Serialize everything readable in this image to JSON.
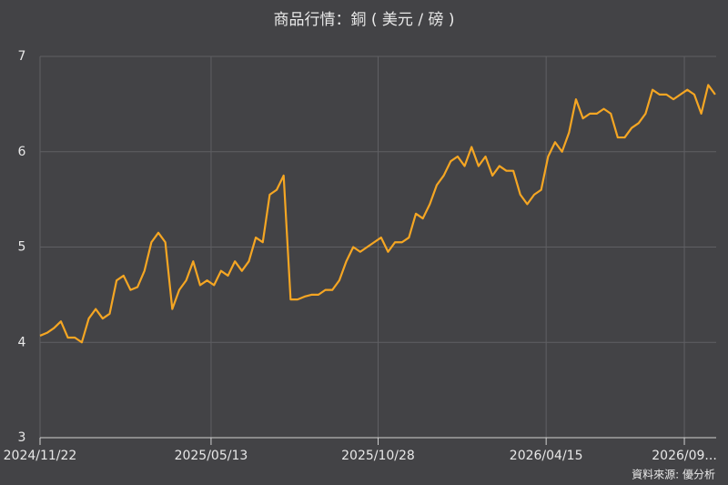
{
  "chart_data": {
    "type": "line",
    "title": "商品行情：銅 ( 美元 / 磅 )",
    "source": "資料來源: 優分析",
    "x": [
      "2024/11/22",
      "2024/11/29",
      "2024/12/06",
      "2024/12/13",
      "2024/12/20",
      "2024/12/27",
      "2025/01/03",
      "2025/01/10",
      "2025/01/17",
      "2025/01/24",
      "2025/01/31",
      "2025/02/07",
      "2025/02/14",
      "2025/02/21",
      "2025/02/28",
      "2025/03/07",
      "2025/03/14",
      "2025/03/21",
      "2025/03/28",
      "2025/04/04",
      "2025/04/11",
      "2025/04/18",
      "2025/04/25",
      "2025/05/02",
      "2025/05/09",
      "2025/05/16",
      "2025/05/23",
      "2025/05/30",
      "2025/06/06",
      "2025/06/13",
      "2025/06/20",
      "2025/06/27",
      "2025/07/04",
      "2025/07/11",
      "2025/07/18",
      "2025/07/25",
      "2025/08/01",
      "2025/08/08",
      "2025/08/15",
      "2025/08/22",
      "2025/08/29",
      "2025/09/05",
      "2025/09/12",
      "2025/09/19",
      "2025/09/26",
      "2025/10/03",
      "2025/10/10",
      "2025/10/17",
      "2025/10/24",
      "2025/10/31",
      "2025/11/07",
      "2025/11/14",
      "2025/11/21",
      "2025/11/28",
      "2025/12/05",
      "2025/12/12",
      "2025/12/19",
      "2025/12/26",
      "2026/01/02",
      "2026/01/09",
      "2026/01/16",
      "2026/01/23",
      "2026/01/30",
      "2026/02/06",
      "2026/02/13",
      "2026/02/20",
      "2026/02/27",
      "2026/03/06",
      "2026/03/13",
      "2026/03/20",
      "2026/03/27",
      "2026/04/03",
      "2026/04/10",
      "2026/04/17",
      "2026/04/24",
      "2026/05/01",
      "2026/05/08",
      "2026/05/15",
      "2026/05/22",
      "2026/05/29",
      "2026/06/05",
      "2026/06/12",
      "2026/06/19",
      "2026/06/26",
      "2026/07/03",
      "2026/07/10",
      "2026/07/17",
      "2026/07/24",
      "2026/07/31",
      "2026/08/07",
      "2026/08/14",
      "2026/08/21",
      "2026/08/28",
      "2026/09/04",
      "2026/09/11",
      "2026/09/18",
      "2026/09/25",
      "2026/10/02"
    ],
    "series": [
      {
        "color": "#f5a623",
        "values": [
          4.07,
          4.1,
          4.15,
          4.22,
          4.05,
          4.05,
          4.0,
          4.25,
          4.35,
          4.25,
          4.3,
          4.65,
          4.7,
          4.55,
          4.58,
          4.75,
          5.05,
          5.15,
          5.05,
          4.35,
          4.55,
          4.65,
          4.85,
          4.6,
          4.65,
          4.6,
          4.75,
          4.7,
          4.85,
          4.75,
          4.85,
          5.1,
          5.05,
          5.55,
          5.6,
          5.75,
          4.45,
          4.45,
          4.48,
          4.5,
          4.5,
          4.55,
          4.55,
          4.65,
          4.85,
          5.0,
          4.95,
          5.0,
          5.05,
          5.1,
          4.95,
          5.05,
          5.05,
          5.1,
          5.35,
          5.3,
          5.45,
          5.65,
          5.75,
          5.9,
          5.95,
          5.85,
          6.05,
          5.85,
          5.95,
          5.75,
          5.85,
          5.8,
          5.8,
          5.55,
          5.45,
          5.55,
          5.6,
          5.95,
          6.1,
          6.0,
          6.2,
          6.55,
          6.35,
          6.4,
          6.4,
          6.45,
          6.4,
          6.15,
          6.15,
          6.25,
          6.3,
          6.4,
          6.65,
          6.6,
          6.6,
          6.55,
          6.6,
          6.65,
          6.6,
          6.4,
          6.7,
          6.6
        ]
      }
    ],
    "xlim": [
      "2024/11/22",
      "2026/10/03"
    ],
    "xticks": [
      "2024/11/22",
      "2025/05/13",
      "2025/10/28",
      "2026/04/15",
      {
        "value": "2026/09/01",
        "label": "2026/09..."
      }
    ],
    "ylim": [
      3,
      7
    ],
    "yticks": [
      3,
      4,
      5,
      6,
      7
    ],
    "grid": true
  }
}
